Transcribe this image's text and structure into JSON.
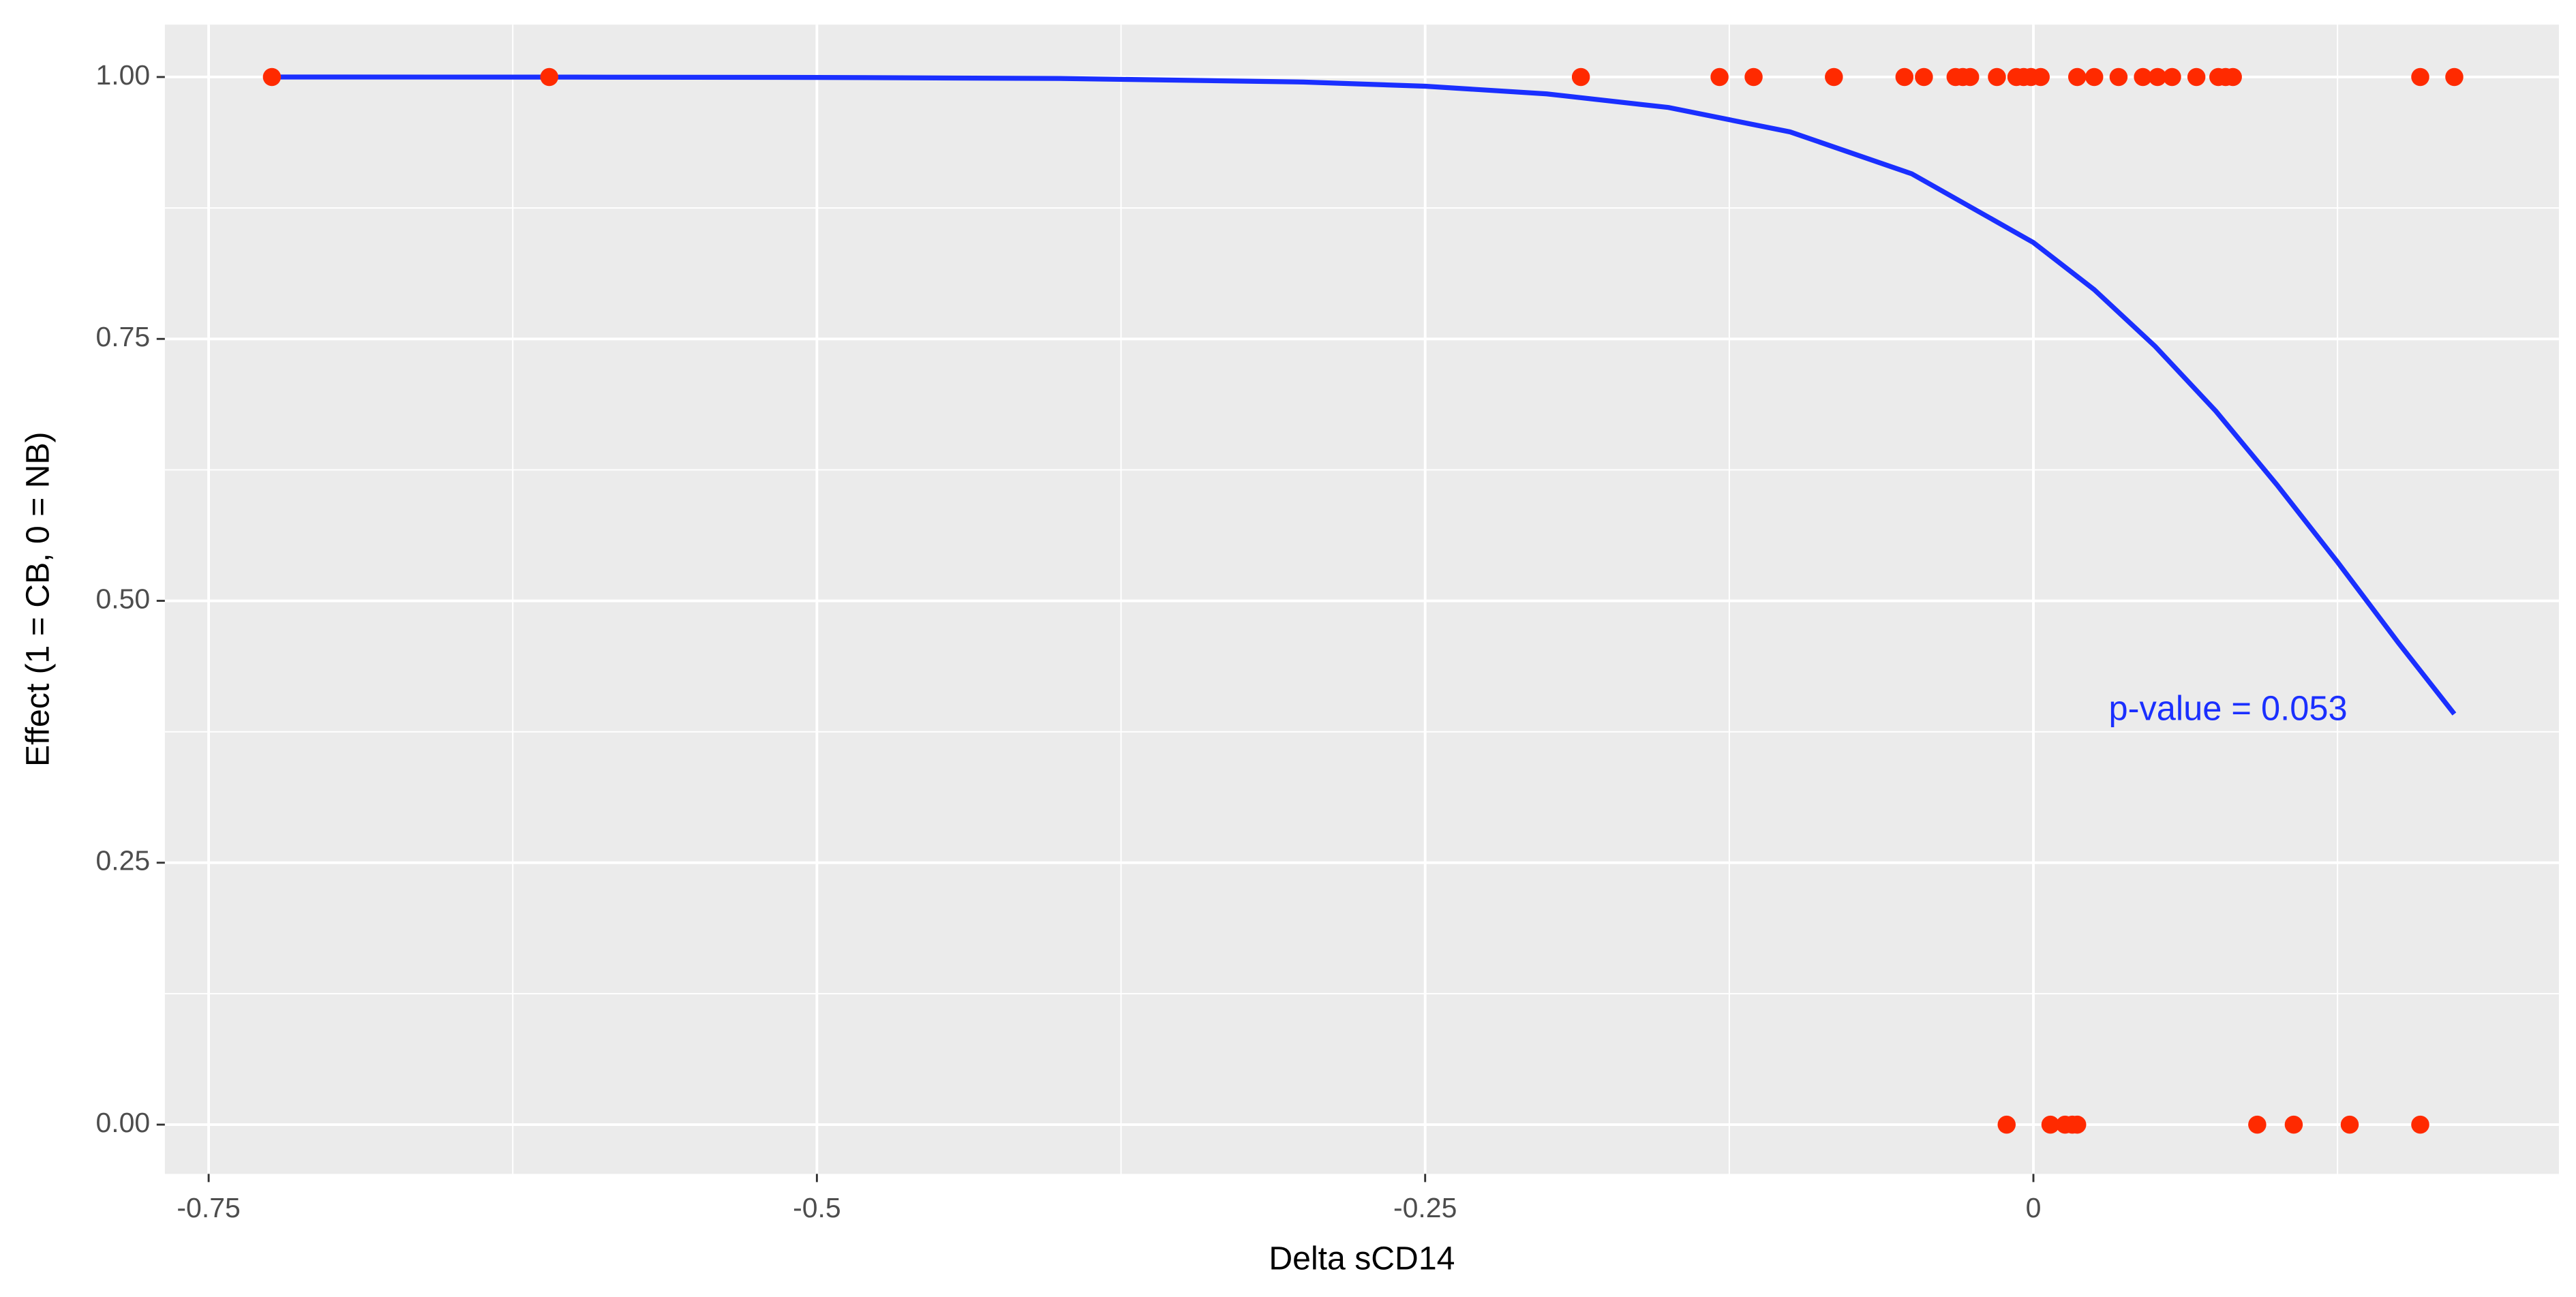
{
  "chart_data": {
    "type": "scatter",
    "xlabel": "Delta sCD14",
    "ylabel": "Effect (1 = CB, 0 = NB)",
    "xlim": [
      -0.768,
      0.216
    ],
    "ylim": [
      -0.047,
      1.05
    ],
    "xticks": [
      -0.75,
      -0.5,
      -0.25,
      0
    ],
    "yticks": [
      {
        "value": 0,
        "label": "0.00"
      },
      {
        "value": 0.25,
        "label": "0.25"
      },
      {
        "value": 0.5,
        "label": "0.50"
      },
      {
        "value": 0.75,
        "label": "0.75"
      },
      {
        "value": 1,
        "label": "1.00"
      }
    ],
    "grid": true,
    "series": [
      {
        "mode": "markers",
        "color": "#ff2a00",
        "x": [
          -0.724,
          -0.61,
          -0.186,
          -0.129,
          -0.115,
          -0.082,
          -0.053,
          -0.045,
          -0.032,
          -0.029,
          -0.026,
          -0.015,
          -0.007,
          -0.004,
          -0.001,
          0.003,
          0.018,
          0.025,
          0.035,
          0.045,
          0.051,
          0.057,
          0.067,
          0.076,
          0.079,
          0.082,
          0.159,
          0.173,
          -0.011,
          0.007,
          0.013,
          0.016,
          0.018,
          0.092,
          0.107,
          0.13,
          0.159
        ],
        "values": [
          1,
          1,
          1,
          1,
          1,
          1,
          1,
          1,
          1,
          1,
          1,
          1,
          1,
          1,
          1,
          1,
          1,
          1,
          1,
          1,
          1,
          1,
          1,
          1,
          1,
          1,
          1,
          1,
          0,
          0,
          0,
          0,
          0,
          0,
          0,
          0,
          0
        ]
      },
      {
        "mode": "line",
        "color": "#1a2fff",
        "x": [
          -0.724,
          -0.6,
          -0.5,
          -0.4,
          -0.3,
          -0.25,
          -0.2,
          -0.15,
          -0.1,
          -0.05,
          0,
          0.025,
          0.05,
          0.075,
          0.1,
          0.125,
          0.15,
          0.173
        ],
        "values": [
          1.0,
          0.9999,
          0.9996,
          0.9986,
          0.9952,
          0.9912,
          0.9839,
          0.9709,
          0.9476,
          0.9076,
          0.842,
          0.797,
          0.743,
          0.681,
          0.611,
          0.537,
          0.46,
          0.392
        ]
      }
    ],
    "annotations": [
      {
        "text": "p-value = 0.053",
        "x": 0.08,
        "y": 0.395,
        "color": "#1a2fff"
      }
    ]
  }
}
